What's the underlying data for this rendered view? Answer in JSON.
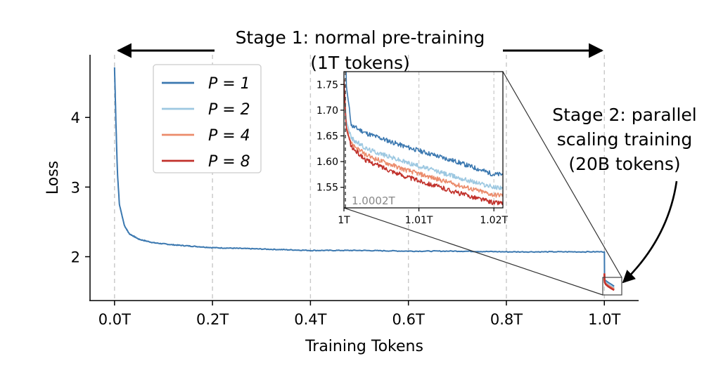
{
  "chart_data": {
    "type": "line",
    "xlabel": "Training Tokens",
    "ylabel": "Loss",
    "xlim": [
      -0.05,
      1.07
    ],
    "ylim": [
      1.37,
      4.9
    ],
    "xticks": [
      0,
      0.2,
      0.4,
      0.6,
      0.8,
      1.0
    ],
    "xtick_labels": [
      "0.0T",
      "0.2T",
      "0.4T",
      "0.6T",
      "0.8T",
      "1.0T"
    ],
    "yticks": [
      2,
      3,
      4
    ],
    "ytick_labels": [
      "2",
      "3",
      "4"
    ],
    "grid": "vertical dashed",
    "legend_placement": "upper-left",
    "series": [
      {
        "name": "P = 1",
        "color": "#3b78b0",
        "points": [
          [
            0.0,
            4.72
          ],
          [
            0.003,
            3.9
          ],
          [
            0.006,
            3.2
          ],
          [
            0.01,
            2.75
          ],
          [
            0.02,
            2.45
          ],
          [
            0.03,
            2.33
          ],
          [
            0.05,
            2.25
          ],
          [
            0.08,
            2.2
          ],
          [
            0.12,
            2.17
          ],
          [
            0.2,
            2.13
          ],
          [
            0.3,
            2.11
          ],
          [
            0.4,
            2.09
          ],
          [
            0.5,
            2.09
          ],
          [
            0.6,
            2.08
          ],
          [
            0.7,
            2.08
          ],
          [
            0.8,
            2.07
          ],
          [
            0.9,
            2.07
          ],
          [
            0.998,
            2.07
          ],
          [
            1.0,
            2.07
          ],
          [
            1.0003,
            1.75
          ],
          [
            1.001,
            1.67
          ],
          [
            1.003,
            1.655
          ],
          [
            1.008,
            1.63
          ],
          [
            1.015,
            1.6
          ],
          [
            1.02,
            1.575
          ]
        ]
      },
      {
        "name": "P = 2",
        "color": "#9dc8e1",
        "points": [
          [
            1.0,
            1.76
          ],
          [
            1.0003,
            1.68
          ],
          [
            1.001,
            1.645
          ],
          [
            1.003,
            1.625
          ],
          [
            1.008,
            1.6
          ],
          [
            1.015,
            1.57
          ],
          [
            1.02,
            1.55
          ]
        ]
      },
      {
        "name": "P = 4",
        "color": "#eb8b6b",
        "points": [
          [
            1.0,
            1.76
          ],
          [
            1.0003,
            1.67
          ],
          [
            1.001,
            1.635
          ],
          [
            1.003,
            1.612
          ],
          [
            1.008,
            1.585
          ],
          [
            1.015,
            1.555
          ],
          [
            1.02,
            1.535
          ]
        ]
      },
      {
        "name": "P = 8",
        "color": "#c1312b",
        "points": [
          [
            1.0,
            1.76
          ],
          [
            1.0003,
            1.665
          ],
          [
            1.001,
            1.628
          ],
          [
            1.003,
            1.602
          ],
          [
            1.008,
            1.572
          ],
          [
            1.015,
            1.54
          ],
          [
            1.02,
            1.52
          ]
        ]
      }
    ],
    "inset": {
      "xlim": [
        1.0,
        1.0212
      ],
      "ylim": [
        1.51,
        1.775
      ],
      "xticks": [
        1.0,
        1.01,
        1.02
      ],
      "xtick_labels": [
        "1T",
        "1.01T",
        "1.02T"
      ],
      "yticks": [
        1.55,
        1.6,
        1.65,
        1.7,
        1.75
      ],
      "ytick_labels": [
        "1.55",
        "1.60",
        "1.65",
        "1.70",
        "1.75"
      ],
      "marker_x": 1.0002,
      "marker_label": "1.0002T"
    },
    "annotations": {
      "stage1": [
        "Stage 1: normal pre-training",
        "(1T tokens)"
      ],
      "stage2": [
        "Stage 2: parallel",
        "scaling training",
        "(20B tokens)"
      ]
    }
  }
}
